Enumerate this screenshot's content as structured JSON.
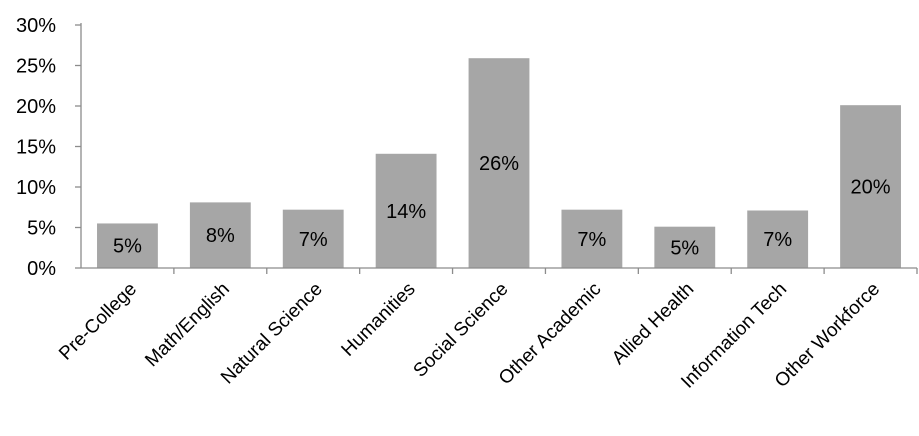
{
  "chart_data": {
    "type": "bar",
    "categories": [
      "Pre-College",
      "Math/English",
      "Natural Science",
      "Humanities",
      "Social Science",
      "Other Academic",
      "Allied Health",
      "Information Tech",
      "Other Workforce"
    ],
    "values": [
      5.5,
      8.1,
      7.2,
      14.1,
      25.9,
      7.2,
      5.1,
      7.1,
      20.1
    ],
    "data_labels": [
      "5%",
      "8%",
      "7%",
      "14%",
      "26%",
      "7%",
      "5%",
      "7%",
      "20%"
    ],
    "title": "",
    "xlabel": "",
    "ylabel": "",
    "ylim": [
      0,
      30
    ],
    "yticks": [
      0,
      5,
      10,
      15,
      20,
      25,
      30
    ],
    "ytick_labels": [
      "0%",
      "5%",
      "10%",
      "15%",
      "20%",
      "25%",
      "30%"
    ],
    "grid": false,
    "legend": "none",
    "bar_color": "#a6a6a6"
  }
}
